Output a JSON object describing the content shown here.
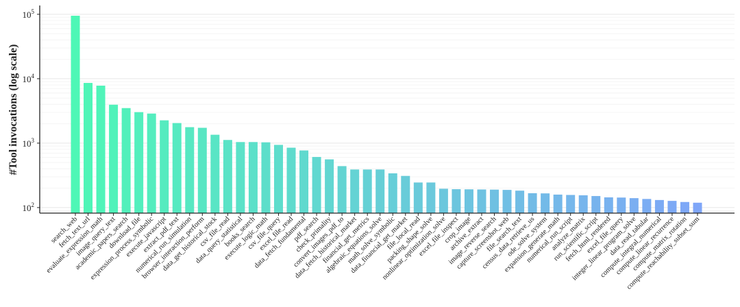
{
  "chart_data": {
    "type": "bar",
    "title": "",
    "xlabel": "",
    "ylabel": "#Tool invocations (log scale)",
    "yscale": "log",
    "ylim": [
      82,
      137000
    ],
    "yticks": [
      100,
      1000,
      10000,
      100000
    ],
    "ytick_labels": [
      {
        "base": "10",
        "exp": "2"
      },
      {
        "base": "10",
        "exp": "3"
      },
      {
        "base": "10",
        "exp": "4"
      },
      {
        "base": "10",
        "exp": "5"
      }
    ],
    "grid": "horizontal",
    "colors": {
      "start": "#4ef7b6",
      "end": "#7fa6f8"
    },
    "categories": [
      "search_web",
      "fetch_text_url",
      "evaluate_expression_math",
      "image_query_text",
      "academic_papers_search",
      "download_file",
      "expression_process_symbolic",
      "execute_javascript",
      "extract_pdf_text",
      "numerical_run_simulation",
      "browser_interaction_perform",
      "data_get_historical_stock",
      "csv_file_read",
      "data_query_statistical",
      "books_search",
      "execute_logic_math",
      "csv_file_query",
      "excel_file_read",
      "data_fetch_fundamental",
      "pdf_search",
      "check_primality",
      "convert_images_pdf_to",
      "data_fetch_historical_market",
      "financial_get_metrics",
      "algebraic_equations_solve",
      "math_solve_symbolic",
      "data_financial_get_market",
      "file_local_read",
      "packing_shape_solve",
      "nonlinear_optimization_solve",
      "excel_file_inspect",
      "crop_image",
      "archive_extract",
      "image_reverse_search",
      "capture_screenshot_web",
      "file_search_text",
      "census_data_retrieve_us",
      "ode_solve_system",
      "expansion_generate_math",
      "numerical_run_script",
      "analyze_matrix",
      "run_scientific_script",
      "fetch_html_rendered",
      "excel_file_query",
      "integer_linear_program_solve",
      "data_read_tabular",
      "compute_integral_numerical",
      "compute_linear_recurrence",
      "compute_matrix_rotation",
      "compute_reachability_subset_sum"
    ],
    "values": [
      95000,
      8600,
      7800,
      3950,
      3500,
      3030,
      2880,
      2260,
      2050,
      1770,
      1730,
      1350,
      1120,
      1040,
      1040,
      1030,
      940,
      850,
      770,
      610,
      560,
      440,
      390,
      390,
      390,
      340,
      310,
      245,
      245,
      196,
      193,
      192,
      191,
      190,
      188,
      183,
      167,
      166,
      159,
      157,
      155,
      151,
      144,
      143,
      140,
      136,
      131,
      127,
      122,
      119
    ]
  }
}
